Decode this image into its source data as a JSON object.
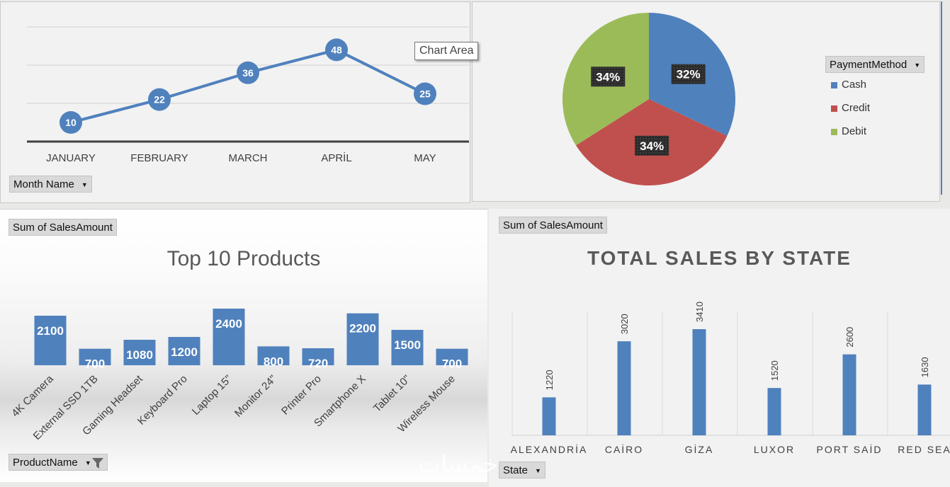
{
  "line_panel": {
    "filter_label": "Month Name"
  },
  "pie_panel": {
    "filter_label": "PaymentMethod"
  },
  "tooltip": {
    "text": "Chart Area"
  },
  "top_panel": {
    "value_label": "Sum of SalesAmount",
    "title": "Top 10 Products",
    "filter_label": "ProductName"
  },
  "state_panel": {
    "value_label": "Sum of SalesAmount",
    "title": "TOTAL SALES BY STATE",
    "filter_label": "State"
  },
  "watermark": "خمسات",
  "colors": {
    "line": "#4f81bd",
    "bar": "#4f81bd",
    "cash": "#4f81bd",
    "credit": "#c0504d",
    "debit": "#9bbb59",
    "label_dark": "#404040"
  },
  "icons": {
    "dropdown": "chevron-down-icon",
    "filter": "filter-icon"
  },
  "chart_data": [
    {
      "type": "line",
      "categories": [
        "JANUARY",
        "FEBRUARY",
        "MARCH",
        "APRİL",
        "MAY"
      ],
      "series": [
        {
          "values": [
            10,
            22,
            36,
            48,
            25
          ]
        }
      ],
      "grid": true
    },
    {
      "type": "pie",
      "categories": [
        "Cash",
        "Credit",
        "Debit"
      ],
      "labels": [
        "32%",
        "34%",
        "34%"
      ],
      "values": [
        32,
        34,
        34
      ],
      "legend": "right"
    },
    {
      "type": "bar",
      "title": "Top 10 Products",
      "categories": [
        "4K Camera",
        "External SSD 1TB",
        "Gaming Headset",
        "Keyboard Pro",
        "Laptop 15\"",
        "Monitor 24\"",
        "Printer Pro",
        "Smartphone X",
        "Tablet 10\"",
        "Wireless Mouse"
      ],
      "values": [
        2100,
        700,
        1080,
        1200,
        2400,
        800,
        720,
        2200,
        1500,
        700
      ]
    },
    {
      "type": "bar",
      "title": "TOTAL SALES BY STATE",
      "categories": [
        "ALEXANDRİA",
        "CAİRO",
        "GİZA",
        "LUXOR",
        "PORT SAİD",
        "RED SEA"
      ],
      "values": [
        1220,
        3020,
        3410,
        1520,
        2600,
        1630
      ],
      "grid": true
    }
  ]
}
